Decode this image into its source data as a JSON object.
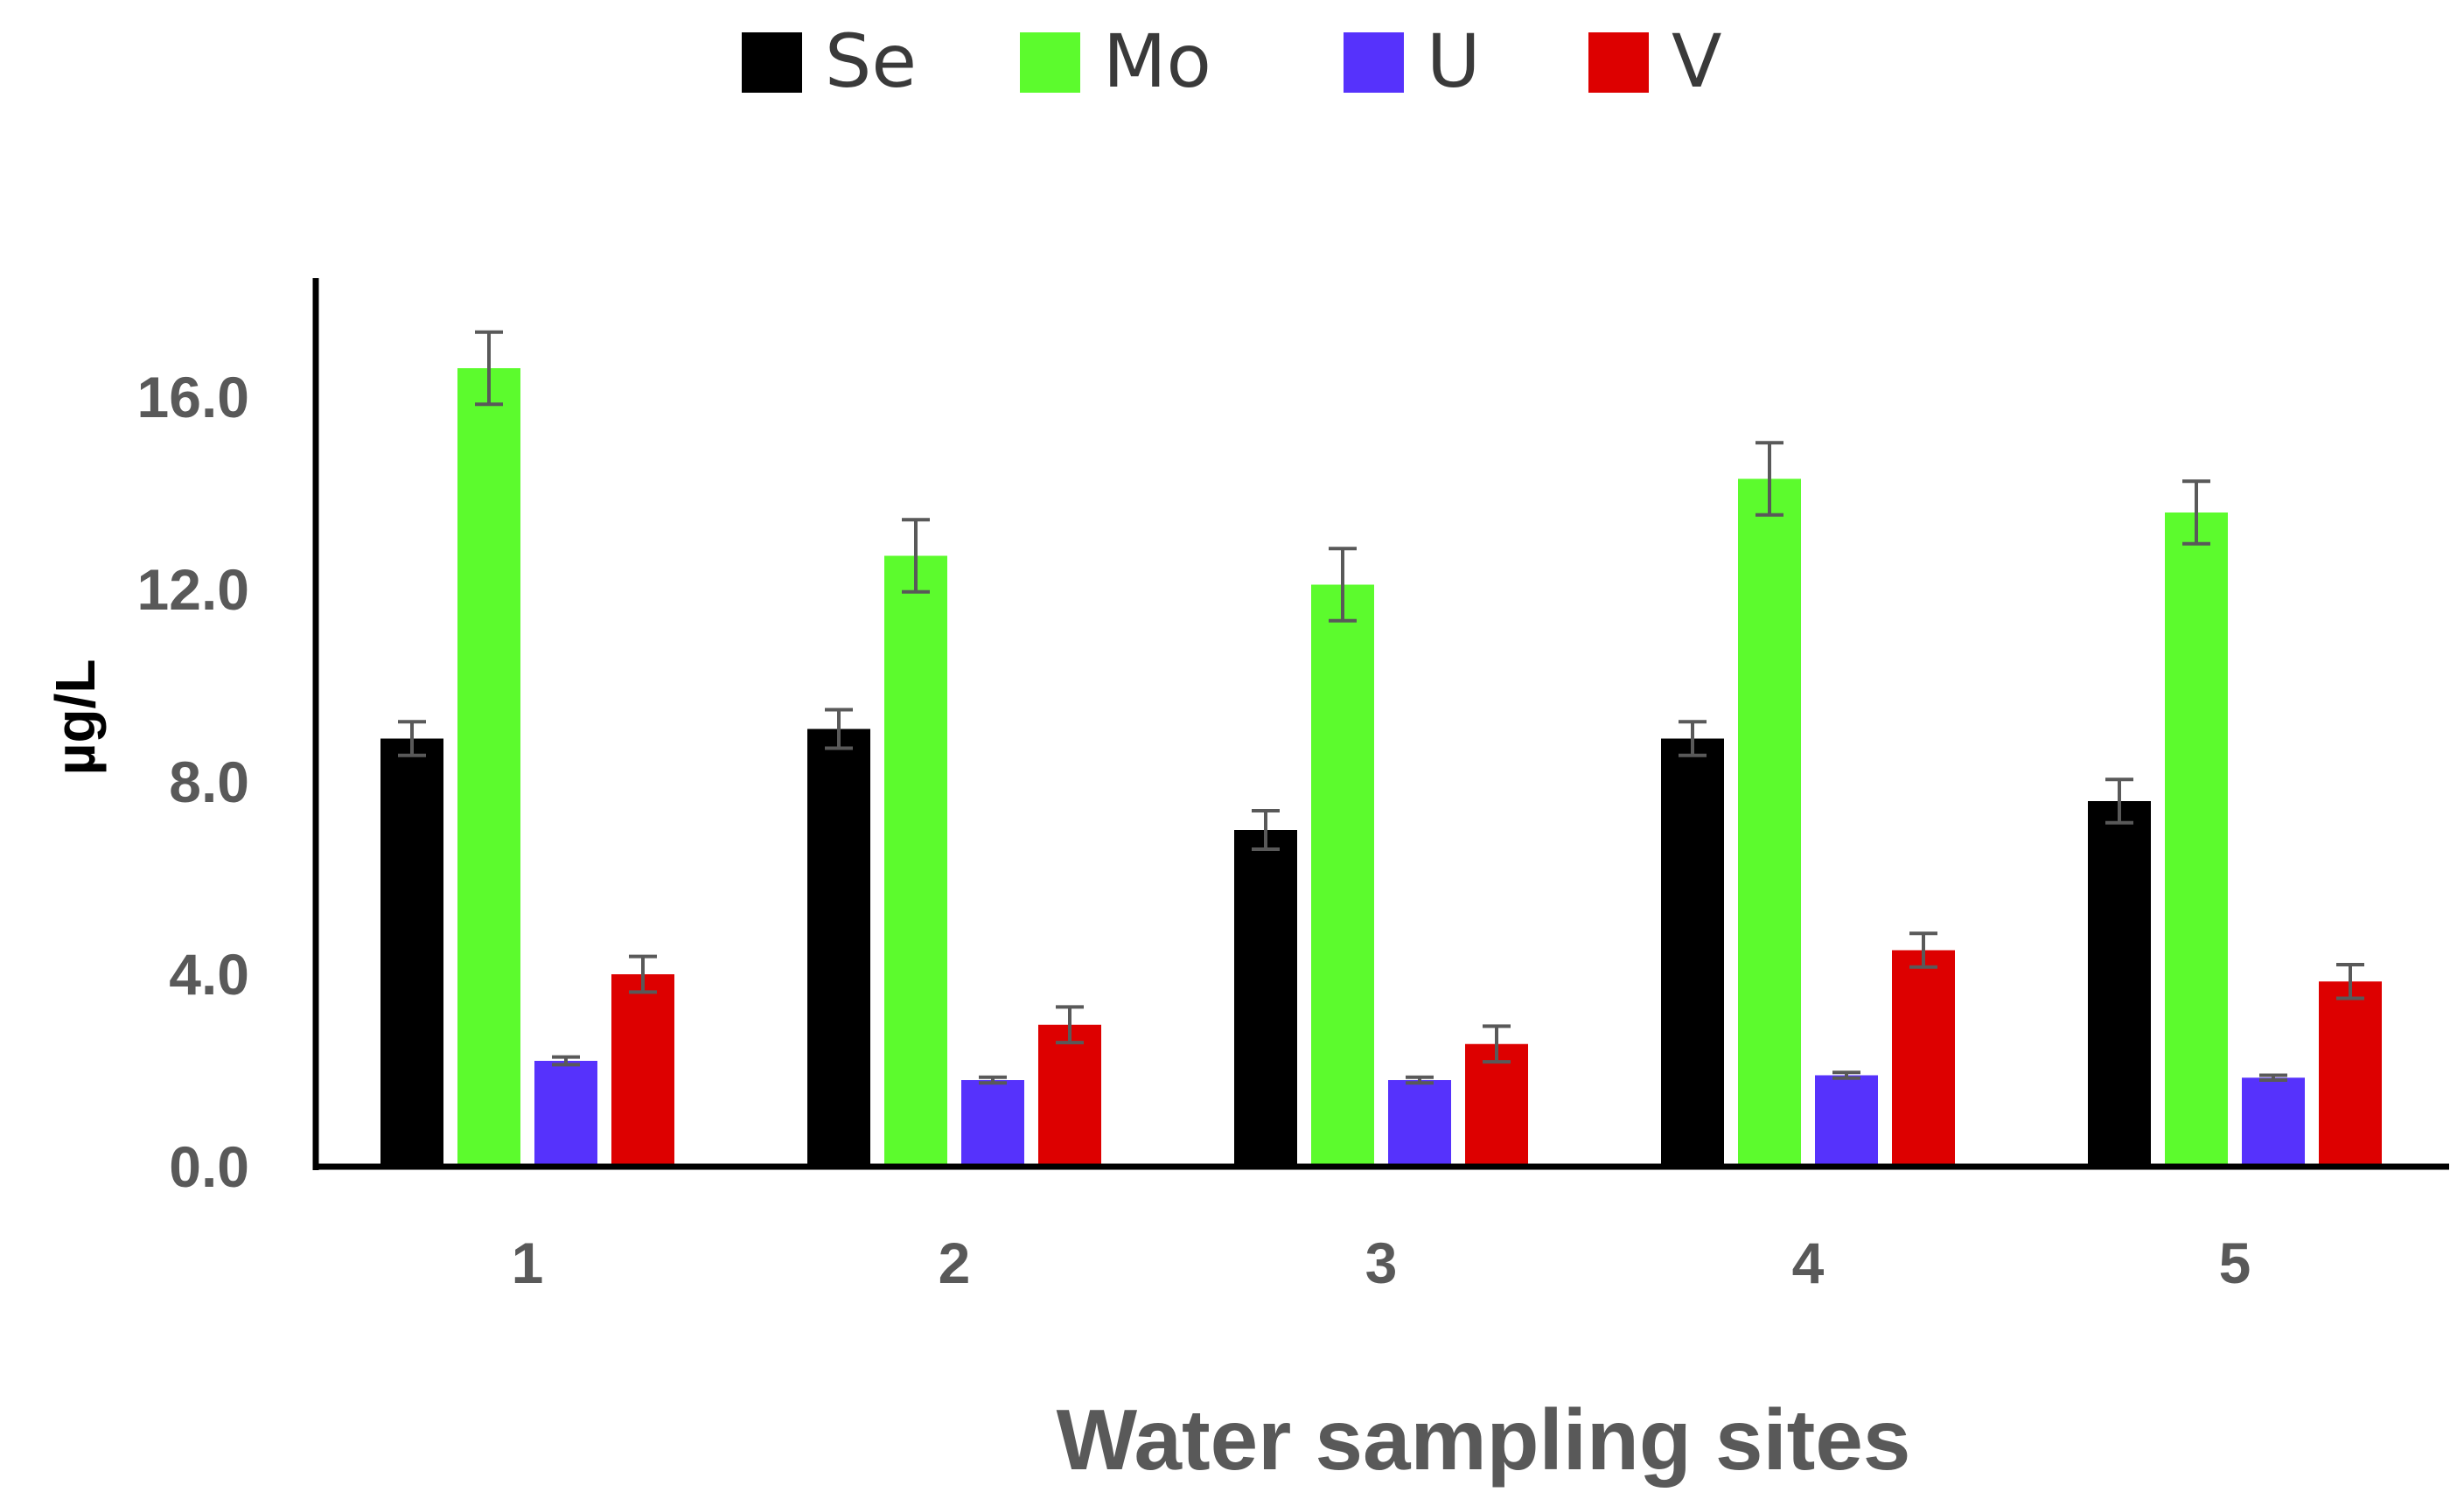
{
  "chart_data": {
    "type": "bar",
    "title": "",
    "xlabel": "Water sampling sites",
    "ylabel": "µg/L",
    "categories": [
      "1",
      "2",
      "3",
      "4",
      "5"
    ],
    "ylim": [
      0,
      18.4
    ],
    "yticks": [
      0,
      4,
      8,
      12,
      16
    ],
    "ytick_labels": [
      "0.0",
      "4.0",
      "8.0",
      "12.0",
      "16.0"
    ],
    "legend_position": "top",
    "grid": false,
    "series": [
      {
        "name": "Se",
        "color": "#000000",
        "values": [
          8.9,
          9.1,
          7.0,
          8.9,
          7.6
        ],
        "errors": [
          0.35,
          0.4,
          0.4,
          0.35,
          0.45
        ]
      },
      {
        "name": "Mo",
        "color": "#5cfb2d",
        "values": [
          16.6,
          12.7,
          12.1,
          14.3,
          13.6
        ],
        "errors": [
          0.75,
          0.75,
          0.75,
          0.75,
          0.65
        ]
      },
      {
        "name": "U",
        "color": "#5632fc",
        "values": [
          2.2,
          1.8,
          1.8,
          1.9,
          1.85
        ],
        "errors": [
          0.08,
          0.06,
          0.06,
          0.06,
          0.05
        ]
      },
      {
        "name": "V",
        "color": "#dd0000",
        "values": [
          4.0,
          2.95,
          2.55,
          4.5,
          3.85
        ],
        "errors": [
          0.37,
          0.37,
          0.37,
          0.35,
          0.35
        ]
      }
    ]
  }
}
